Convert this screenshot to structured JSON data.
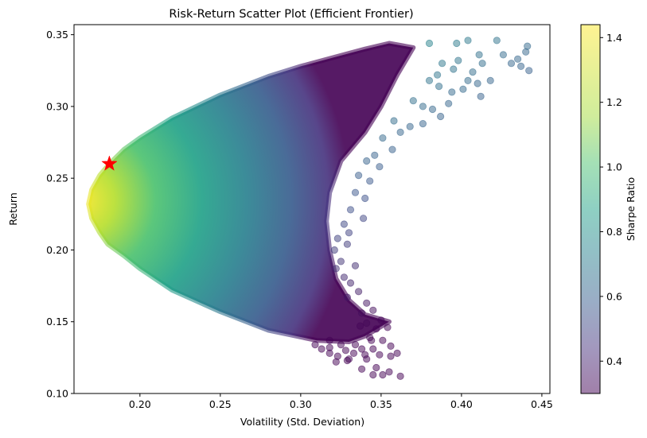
{
  "chart_data": {
    "type": "scatter",
    "title": "Risk-Return Scatter Plot (Efficient Frontier)",
    "xlabel": "Volatility (Std. Deviation)",
    "ylabel": "Return",
    "xlim": [
      0.159,
      0.455
    ],
    "ylim": [
      0.1,
      0.357
    ],
    "x_ticks": [
      "0.20",
      "0.25",
      "0.30",
      "0.35",
      "0.40",
      "0.45"
    ],
    "y_ticks": [
      "0.10",
      "0.15",
      "0.20",
      "0.25",
      "0.30",
      "0.35"
    ],
    "grid": false,
    "legend": "none",
    "point_alpha": 0.5,
    "colormap": "viridis",
    "colorbar": {
      "label": "Sharpe Ratio",
      "range": [
        0.3,
        1.44
      ],
      "ticks": [
        "0.4",
        "0.6",
        "0.8",
        "1.0",
        "1.2",
        "1.4"
      ]
    },
    "cloud_envelope": {
      "upper": [
        [
          0.168,
          0.232
        ],
        [
          0.17,
          0.242
        ],
        [
          0.175,
          0.252
        ],
        [
          0.181,
          0.26
        ],
        [
          0.19,
          0.27
        ],
        [
          0.2,
          0.278
        ],
        [
          0.22,
          0.292
        ],
        [
          0.25,
          0.308
        ],
        [
          0.28,
          0.321
        ],
        [
          0.3,
          0.328
        ],
        [
          0.32,
          0.334
        ],
        [
          0.34,
          0.34
        ],
        [
          0.355,
          0.344
        ],
        [
          0.37,
          0.341
        ]
      ],
      "lower": [
        [
          0.168,
          0.232
        ],
        [
          0.17,
          0.222
        ],
        [
          0.175,
          0.212
        ],
        [
          0.18,
          0.204
        ],
        [
          0.19,
          0.196
        ],
        [
          0.2,
          0.187
        ],
        [
          0.22,
          0.172
        ],
        [
          0.25,
          0.157
        ],
        [
          0.28,
          0.144
        ],
        [
          0.31,
          0.137
        ],
        [
          0.33,
          0.136
        ],
        [
          0.34,
          0.14
        ],
        [
          0.355,
          0.15
        ]
      ],
      "right": [
        [
          0.37,
          0.341
        ],
        [
          0.36,
          0.322
        ],
        [
          0.35,
          0.3
        ],
        [
          0.34,
          0.282
        ],
        [
          0.325,
          0.262
        ],
        [
          0.318,
          0.24
        ],
        [
          0.316,
          0.22
        ],
        [
          0.318,
          0.2
        ],
        [
          0.322,
          0.18
        ],
        [
          0.33,
          0.165
        ],
        [
          0.34,
          0.155
        ],
        [
          0.355,
          0.15
        ]
      ]
    },
    "outlier_points": [
      [
        0.422,
        0.346
      ],
      [
        0.404,
        0.346
      ],
      [
        0.397,
        0.344
      ],
      [
        0.38,
        0.344
      ],
      [
        0.441,
        0.342
      ],
      [
        0.44,
        0.338
      ],
      [
        0.426,
        0.336
      ],
      [
        0.411,
        0.336
      ],
      [
        0.435,
        0.333
      ],
      [
        0.431,
        0.33
      ],
      [
        0.398,
        0.332
      ],
      [
        0.388,
        0.33
      ],
      [
        0.442,
        0.325
      ],
      [
        0.437,
        0.328
      ],
      [
        0.413,
        0.33
      ],
      [
        0.407,
        0.324
      ],
      [
        0.395,
        0.326
      ],
      [
        0.385,
        0.322
      ],
      [
        0.41,
        0.316
      ],
      [
        0.404,
        0.318
      ],
      [
        0.418,
        0.318
      ],
      [
        0.401,
        0.312
      ],
      [
        0.412,
        0.307
      ],
      [
        0.394,
        0.31
      ],
      [
        0.386,
        0.314
      ],
      [
        0.38,
        0.318
      ],
      [
        0.392,
        0.302
      ],
      [
        0.382,
        0.298
      ],
      [
        0.387,
        0.293
      ],
      [
        0.376,
        0.3
      ],
      [
        0.37,
        0.304
      ],
      [
        0.376,
        0.288
      ],
      [
        0.368,
        0.286
      ],
      [
        0.362,
        0.282
      ],
      [
        0.358,
        0.29
      ],
      [
        0.351,
        0.278
      ],
      [
        0.357,
        0.27
      ],
      [
        0.346,
        0.266
      ],
      [
        0.341,
        0.262
      ],
      [
        0.349,
        0.258
      ],
      [
        0.336,
        0.252
      ],
      [
        0.343,
        0.248
      ],
      [
        0.334,
        0.24
      ],
      [
        0.34,
        0.236
      ],
      [
        0.331,
        0.228
      ],
      [
        0.339,
        0.222
      ],
      [
        0.327,
        0.218
      ],
      [
        0.33,
        0.212
      ],
      [
        0.323,
        0.208
      ],
      [
        0.329,
        0.204
      ],
      [
        0.321,
        0.2
      ],
      [
        0.325,
        0.192
      ],
      [
        0.334,
        0.189
      ],
      [
        0.322,
        0.187
      ],
      [
        0.327,
        0.181
      ],
      [
        0.331,
        0.177
      ],
      [
        0.336,
        0.171
      ],
      [
        0.329,
        0.167
      ],
      [
        0.341,
        0.163
      ],
      [
        0.345,
        0.158
      ],
      [
        0.338,
        0.156
      ],
      [
        0.35,
        0.151
      ],
      [
        0.341,
        0.149
      ],
      [
        0.347,
        0.145
      ],
      [
        0.354,
        0.146
      ],
      [
        0.343,
        0.139
      ],
      [
        0.351,
        0.137
      ],
      [
        0.356,
        0.133
      ],
      [
        0.345,
        0.131
      ],
      [
        0.349,
        0.127
      ],
      [
        0.356,
        0.126
      ],
      [
        0.36,
        0.128
      ],
      [
        0.338,
        0.131
      ],
      [
        0.333,
        0.128
      ],
      [
        0.328,
        0.13
      ],
      [
        0.323,
        0.126
      ],
      [
        0.318,
        0.128
      ],
      [
        0.313,
        0.131
      ],
      [
        0.318,
        0.132
      ],
      [
        0.341,
        0.124
      ],
      [
        0.347,
        0.118
      ],
      [
        0.338,
        0.117
      ],
      [
        0.351,
        0.113
      ],
      [
        0.345,
        0.113
      ],
      [
        0.355,
        0.115
      ],
      [
        0.362,
        0.112
      ],
      [
        0.322,
        0.122
      ],
      [
        0.329,
        0.123
      ],
      [
        0.34,
        0.127
      ],
      [
        0.334,
        0.134
      ],
      [
        0.309,
        0.134
      ],
      [
        0.33,
        0.124
      ],
      [
        0.325,
        0.134
      ],
      [
        0.318,
        0.137
      ],
      [
        0.337,
        0.147
      ],
      [
        0.344,
        0.137
      ]
    ],
    "optimal_portfolio": {
      "x": 0.181,
      "y": 0.26,
      "marker": "star",
      "color": "#ff0000"
    }
  }
}
